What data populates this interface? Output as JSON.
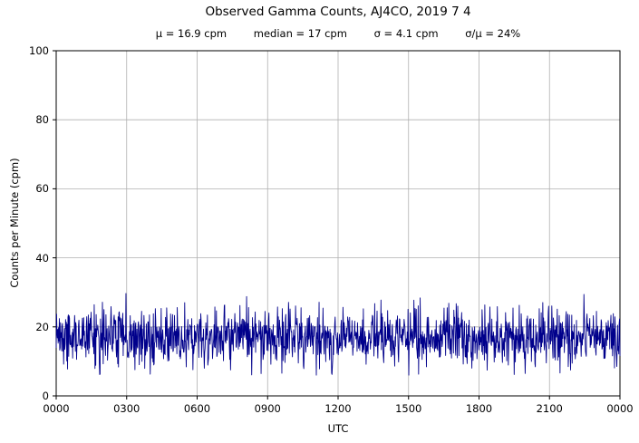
{
  "chart_data": {
    "type": "line",
    "title": "Observed Gamma Counts, AJ4CO, 2019 7 4",
    "stats": {
      "mu": "μ = 16.9 cpm",
      "median": "median = 17 cpm",
      "sigma": "σ = 4.1 cpm",
      "sigma_over_mu": "σ/μ = 24%"
    },
    "mean": 16.9,
    "median_value": 17,
    "sigma": 4.1,
    "sigma_over_mu_pct": 24,
    "xlabel": "UTC",
    "ylabel": "Counts per Minute (cpm)",
    "x_ticks": [
      "0000",
      "0300",
      "0600",
      "0900",
      "1200",
      "1500",
      "1800",
      "2100",
      "0000"
    ],
    "y_ticks": [
      0,
      20,
      40,
      60,
      80,
      100
    ],
    "ylim": [
      0,
      100
    ],
    "n_points": 1440,
    "value_min": 6,
    "value_max": 32,
    "grid": true,
    "line_color": "#00008b",
    "grid_color": "#b0b0b0",
    "axis_color": "#000000",
    "background_color": "#ffffff"
  }
}
